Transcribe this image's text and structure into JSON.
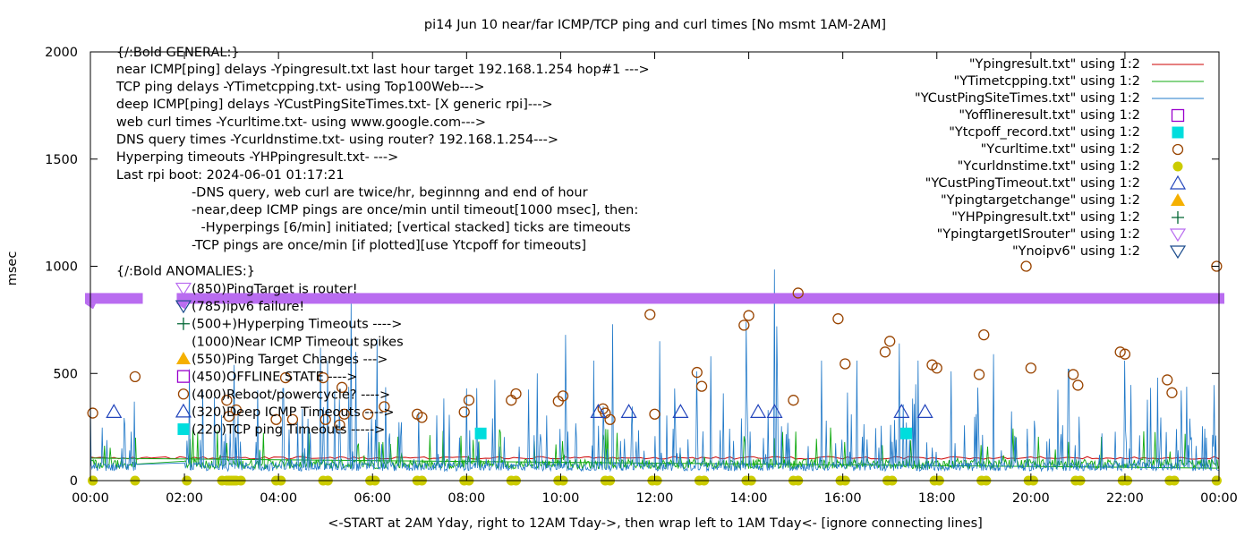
{
  "chart_data": {
    "type": "line",
    "title": "pi14 Jun 10  near/far ICMP/TCP ping and curl times [No msmt 1AM-2AM]",
    "xlabel": "<-START at 2AM Yday, right to 12AM Tday->, then wrap left to 1AM Tday<- [ignore connecting lines]",
    "ylabel": "msec",
    "xlim": [
      0,
      24
    ],
    "ylim": [
      0,
      2000
    ],
    "x_ticks": [
      "00:00",
      "02:00",
      "04:00",
      "06:00",
      "08:00",
      "10:00",
      "12:00",
      "14:00",
      "16:00",
      "18:00",
      "20:00",
      "22:00",
      "00:00"
    ],
    "y_ticks": [
      "0",
      "500",
      "1000",
      "1500",
      "2000"
    ],
    "y_tick_values": [
      0,
      500,
      1000,
      1500,
      2000
    ],
    "legend_position": "top-right",
    "grid": false,
    "colors": {
      "ping": "#cc0000",
      "tcp": "#11aa11",
      "cust": "#1f78c8",
      "offline": "#9900cc",
      "tcpoff": "#00dddd",
      "curl": "#994400",
      "dns": "#cccc00",
      "custto": "#2244bb",
      "targetchange": "#f5b000",
      "hp": "#006633",
      "isrouter": "#b96cf0",
      "noipv6": "#1a4b8c"
    },
    "series": [
      {
        "name": "\"Ypingresult.txt\" using 1:2",
        "style": "line",
        "color": "#cc0000"
      },
      {
        "name": "\"YTimetcpping.txt\" using 1:2",
        "style": "line",
        "color": "#11aa11"
      },
      {
        "name": "\"YCustPingSiteTimes.txt\" using 1:2",
        "style": "line",
        "color": "#1f78c8"
      },
      {
        "name": "\"Yofflineresult.txt\" using 1:2",
        "style": "open-square",
        "color": "#9900cc"
      },
      {
        "name": "\"Ytcpoff_record.txt\" using 1:2",
        "style": "filled-square",
        "color": "#00dddd",
        "points": [
          [
            8.3,
            220
          ],
          [
            17.35,
            220
          ]
        ]
      },
      {
        "name": "\"Ycurltime.txt\" using 1:2",
        "style": "open-circle",
        "color": "#994400",
        "points": [
          [
            0.05,
            315
          ],
          [
            0.95,
            485
          ],
          [
            2.9,
            375
          ],
          [
            2.95,
            300
          ],
          [
            3.1,
            330
          ],
          [
            3.95,
            285
          ],
          [
            4.15,
            480
          ],
          [
            4.3,
            285
          ],
          [
            4.95,
            480
          ],
          [
            5.0,
            285
          ],
          [
            5.3,
            260
          ],
          [
            5.35,
            435
          ],
          [
            5.4,
            310
          ],
          [
            5.9,
            310
          ],
          [
            6.25,
            345
          ],
          [
            6.95,
            310
          ],
          [
            7.05,
            295
          ],
          [
            7.95,
            320
          ],
          [
            8.05,
            375
          ],
          [
            8.95,
            375
          ],
          [
            9.05,
            405
          ],
          [
            9.95,
            370
          ],
          [
            10.05,
            395
          ],
          [
            10.9,
            335
          ],
          [
            10.95,
            315
          ],
          [
            11.05,
            285
          ],
          [
            11.9,
            775
          ],
          [
            12.0,
            310
          ],
          [
            12.9,
            505
          ],
          [
            13.0,
            440
          ],
          [
            13.9,
            725
          ],
          [
            14.0,
            770
          ],
          [
            14.95,
            375
          ],
          [
            15.05,
            875
          ],
          [
            15.9,
            755
          ],
          [
            16.05,
            545
          ],
          [
            16.9,
            600
          ],
          [
            17.0,
            650
          ],
          [
            17.9,
            540
          ],
          [
            18.0,
            525
          ],
          [
            18.9,
            495
          ],
          [
            19.0,
            680
          ],
          [
            19.9,
            1000
          ],
          [
            20.0,
            525
          ],
          [
            20.9,
            495
          ],
          [
            21.0,
            445
          ],
          [
            21.9,
            600
          ],
          [
            22.0,
            590
          ],
          [
            22.9,
            470
          ],
          [
            23.0,
            410
          ],
          [
            23.95,
            1000
          ]
        ]
      },
      {
        "name": "\"Ycurldnstime.txt\" using 1:2",
        "style": "filled-circle",
        "color": "#cccc00"
      },
      {
        "name": "\"YCustPingTimeout.txt\" using 1:2",
        "style": "open-triangle",
        "color": "#2244bb",
        "points": [
          [
            0.5,
            320
          ],
          [
            10.8,
            320
          ],
          [
            11.45,
            320
          ],
          [
            12.55,
            320
          ],
          [
            14.2,
            320
          ],
          [
            14.55,
            320
          ],
          [
            17.25,
            320
          ],
          [
            17.75,
            320
          ]
        ]
      },
      {
        "name": "\"Ypingtargetchange\" using 1:2",
        "style": "filled-triangle",
        "color": "#f5b000"
      },
      {
        "name": "\"YHPpingresult.txt\" using 1:2",
        "style": "plus",
        "color": "#006633"
      },
      {
        "name": "\"YpingtargetISrouter\" using 1:2",
        "style": "open-triangle-down",
        "color": "#b96cf0",
        "line_segments": [
          [
            [
              0,
              850
            ],
            [
              1.0,
              850
            ]
          ],
          [
            [
              1.95,
              850
            ],
            [
              24,
              850
            ]
          ]
        ]
      },
      {
        "name": "\"Ynoipv6\" using 1:2",
        "style": "open-triangle-down",
        "color": "#1a4b8c"
      }
    ],
    "annotations": [
      {
        "text": "{/:Bold GENERAL:}",
        "x": 0.55,
        "y": 1980
      },
      {
        "text": "near ICMP[ping] delays -Ypingresult.txt last hour target 192.168.1.254 hop#1 --->",
        "x": 0.55,
        "y": 1900
      },
      {
        "text": "TCP ping delays -YTimetcpping.txt- using Top100Web--->",
        "x": 0.55,
        "y": 1818
      },
      {
        "text": "deep ICMP[ping] delays -YCustPingSiteTimes.txt- [X generic rpi]--->",
        "x": 0.55,
        "y": 1736
      },
      {
        "text": "web curl times -Ycurltime.txt- using www.google.com--->",
        "x": 0.55,
        "y": 1654
      },
      {
        "text": "DNS query times -Ycurldnstime.txt- using router? 192.168.1.254--->",
        "x": 0.55,
        "y": 1572
      },
      {
        "text": "Hyperping timeouts -YHPpingresult.txt- --->",
        "x": 0.55,
        "y": 1490
      },
      {
        "text": "Last rpi boot: 2024-06-01 01:17:21",
        "x": 0.55,
        "y": 1408
      },
      {
        "text": "-DNS query, web curl are twice/hr, beginnng and end of hour",
        "x": 2.15,
        "y": 1326
      },
      {
        "text": "-near,deep ICMP pings are once/min until timeout[1000 msec], then:",
        "x": 2.15,
        "y": 1244
      },
      {
        "text": "-Hyperpings [6/min] initiated; [vertical stacked] ticks are timeouts",
        "x": 2.35,
        "y": 1162
      },
      {
        "text": "-TCP pings are once/min [if plotted][use Ytcpoff for timeouts]",
        "x": 2.15,
        "y": 1080
      },
      {
        "text": "{/:Bold ANOMALIES:}",
        "x": 0.55,
        "y": 958
      },
      {
        "text": "(850)PingTarget is router!",
        "x": 2.15,
        "y": 875,
        "marker": "isrouter"
      },
      {
        "text": "(785)ipv6 failure!",
        "x": 2.15,
        "y": 793,
        "marker": "noipv6"
      },
      {
        "text": "(500+)Hyperping Timeouts ---->",
        "x": 2.15,
        "y": 711,
        "marker": "hp"
      },
      {
        "text": "(1000)Near ICMP Timeout spikes",
        "x": 2.15,
        "y": 629
      },
      {
        "text": "(550)Ping Target Changes --->",
        "x": 2.15,
        "y": 547,
        "marker": "targetchange"
      },
      {
        "text": "(450)OFFLINE STATE ---->",
        "x": 2.15,
        "y": 465,
        "marker": "offline"
      },
      {
        "text": "(400)Reboot/powercycle? ---->",
        "x": 2.15,
        "y": 383,
        "marker": "curl"
      },
      {
        "text": "(320)Deep ICMP Timeouts ---->",
        "x": 2.15,
        "y": 301,
        "marker": "custto"
      },
      {
        "text": "(220)TCP ping Timeouts ----->",
        "x": 2.15,
        "y": 219,
        "marker": "tcpoff"
      }
    ]
  }
}
